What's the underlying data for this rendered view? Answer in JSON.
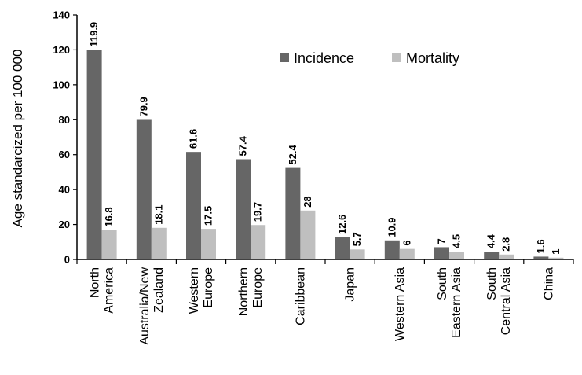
{
  "chart_data": {
    "type": "bar",
    "title": "",
    "xlabel": "",
    "ylabel": "Age standarcized per 100 000",
    "ylim": [
      0,
      140
    ],
    "yticks": [
      0,
      20,
      40,
      60,
      80,
      100,
      120,
      140
    ],
    "grid": false,
    "legend_position": "top-right",
    "categories": [
      [
        "North",
        "America"
      ],
      [
        "Australia/New",
        "Zealand"
      ],
      [
        "Western",
        "Europe"
      ],
      [
        "Northern",
        "Europe"
      ],
      [
        "Caribbean"
      ],
      [
        "Japan"
      ],
      [
        "Western Asia"
      ],
      [
        "South",
        "Eastern Asia"
      ],
      [
        "South",
        "Central Asia"
      ],
      [
        "China"
      ]
    ],
    "series": [
      {
        "name": "Incidence",
        "color": "#666666",
        "values": [
          119.9,
          79.9,
          61.6,
          57.4,
          52.4,
          12.6,
          10.9,
          7,
          4.4,
          1.6
        ],
        "labels": [
          "119.9",
          "79.9",
          "61.6",
          "57.4",
          "52.4",
          "12.6",
          "10.9",
          "7",
          "4.4",
          "1.6"
        ]
      },
      {
        "name": "Mortality",
        "color": "#bfbfbf",
        "values": [
          16.8,
          18.1,
          17.5,
          19.7,
          28,
          5.7,
          6,
          4.5,
          2.8,
          1
        ],
        "labels": [
          "16.8",
          "18.1",
          "17.5",
          "19.7",
          "28",
          "5.7",
          "6",
          "4.5",
          "2.8",
          "1"
        ]
      }
    ]
  }
}
